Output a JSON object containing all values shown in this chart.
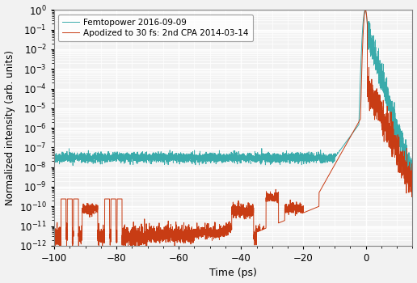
{
  "xlim": [
    -100,
    15
  ],
  "ylim_log": [
    -12,
    0
  ],
  "xlabel": "Time (ps)",
  "ylabel": "Normalized intensity (arb. units)",
  "legend1": "Femtopower 2016-09-09",
  "legend2": "Apodized to 30 fs: 2nd CPA 2014-03-14",
  "color1": "#3aabab",
  "color2": "#c83c14",
  "fig_facecolor": "#f2f2f2",
  "ax_facecolor": "#f2f2f2",
  "grid_color": "#ffffff",
  "seed": 42
}
